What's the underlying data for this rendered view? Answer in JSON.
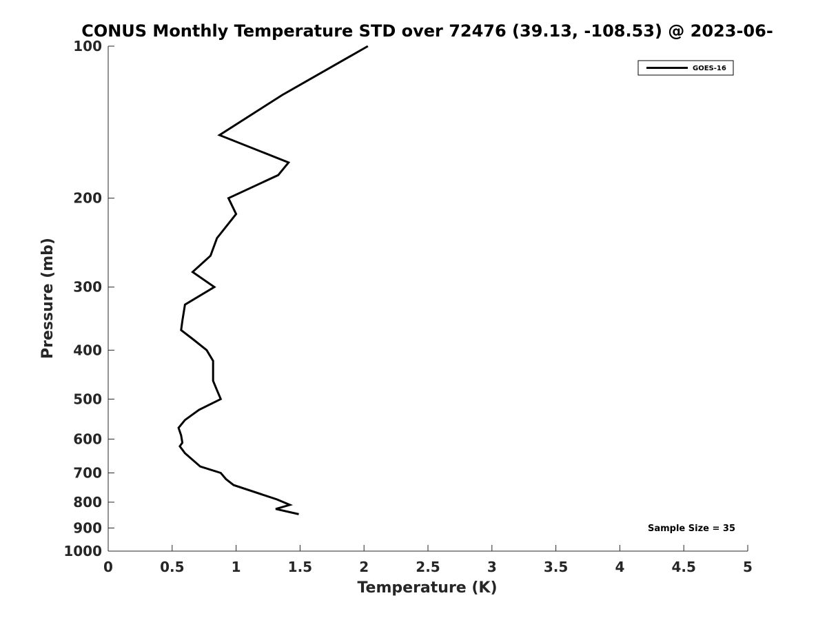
{
  "chart_data": {
    "type": "line",
    "title": "CONUS Monthly Temperature STD over 72476 (39.13, -108.53) @ 2023-06-",
    "xlabel": "Temperature (K)",
    "ylabel": "Pressure (mb)",
    "xlim": [
      0,
      5
    ],
    "ylim": [
      100,
      1000
    ],
    "y_scale": "log",
    "y_reversed": true,
    "x_ticks": [
      "0",
      "0.5",
      "1",
      "1.5",
      "2",
      "2.5",
      "3",
      "3.5",
      "4",
      "4.5",
      "5"
    ],
    "y_ticks": [
      "100",
      "200",
      "300",
      "400",
      "500",
      "600",
      "700",
      "800",
      "900",
      "1000"
    ],
    "grid": false,
    "legend_position": "top-right",
    "line_color": "#000000",
    "series": [
      {
        "name": "GOES-16",
        "points": [
          {
            "x": 2.03,
            "p": 100
          },
          {
            "x": 1.36,
            "p": 125
          },
          {
            "x": 0.87,
            "p": 150
          },
          {
            "x": 1.41,
            "p": 170
          },
          {
            "x": 1.33,
            "p": 180
          },
          {
            "x": 0.94,
            "p": 200
          },
          {
            "x": 1.0,
            "p": 215
          },
          {
            "x": 0.85,
            "p": 240
          },
          {
            "x": 0.8,
            "p": 260
          },
          {
            "x": 0.66,
            "p": 280
          },
          {
            "x": 0.83,
            "p": 300
          },
          {
            "x": 0.6,
            "p": 325
          },
          {
            "x": 0.58,
            "p": 350
          },
          {
            "x": 0.57,
            "p": 365
          },
          {
            "x": 0.66,
            "p": 380
          },
          {
            "x": 0.77,
            "p": 400
          },
          {
            "x": 0.82,
            "p": 420
          },
          {
            "x": 0.82,
            "p": 460
          },
          {
            "x": 0.85,
            "p": 480
          },
          {
            "x": 0.88,
            "p": 500
          },
          {
            "x": 0.71,
            "p": 525
          },
          {
            "x": 0.6,
            "p": 550
          },
          {
            "x": 0.55,
            "p": 570
          },
          {
            "x": 0.57,
            "p": 590
          },
          {
            "x": 0.58,
            "p": 610
          },
          {
            "x": 0.56,
            "p": 620
          },
          {
            "x": 0.6,
            "p": 640
          },
          {
            "x": 0.72,
            "p": 680
          },
          {
            "x": 0.88,
            "p": 700
          },
          {
            "x": 0.92,
            "p": 720
          },
          {
            "x": 0.98,
            "p": 740
          },
          {
            "x": 1.32,
            "p": 790
          },
          {
            "x": 1.42,
            "p": 810
          },
          {
            "x": 1.31,
            "p": 825
          },
          {
            "x": 1.49,
            "p": 845
          }
        ]
      }
    ],
    "annotations": [
      {
        "text": "Sample Size = 35",
        "position": "bottom-right"
      }
    ]
  }
}
